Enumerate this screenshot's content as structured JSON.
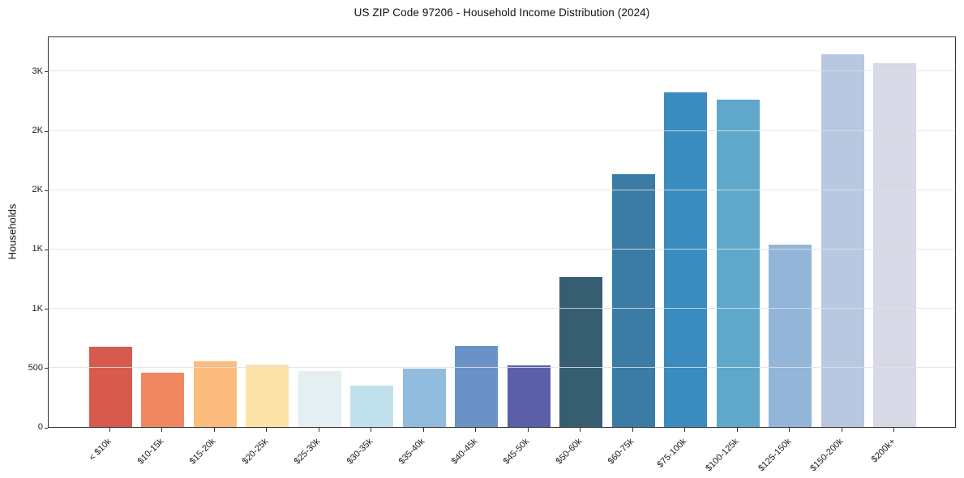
{
  "chart_data": {
    "type": "bar",
    "title": "US ZIP Code 97206 - Household Income Distribution (2024)",
    "xlabel": "",
    "ylabel": "Households",
    "categories": [
      "< $10k",
      "$10-15k",
      "$15-20k",
      "$20-25k",
      "$25-30k",
      "$30-35k",
      "$35-40k",
      "$40-45k",
      "$45-50k",
      "$50-60k",
      "$60-75k",
      "$75-100k",
      "$100-125k",
      "$125-150k",
      "$150-200k",
      "$200k+"
    ],
    "values": [
      675,
      455,
      555,
      525,
      470,
      350,
      495,
      680,
      520,
      1265,
      2130,
      2825,
      2760,
      1535,
      3145,
      3070
    ],
    "bar_colors": [
      "#D85A4E",
      "#F08760",
      "#FBBC7E",
      "#FCE4A8",
      "#E3EFF1",
      "#C1E0ED",
      "#92BCDE",
      "#6A92C6",
      "#5A5FA8",
      "#365E70",
      "#3A7CA5",
      "#3A8CBE",
      "#5FA8CC",
      "#93B5D8",
      "#B8C8E0",
      "#D7D9E6"
    ],
    "ylim": [
      0,
      3300
    ],
    "yticks": [
      {
        "value": 0,
        "label": "0"
      },
      {
        "value": 500,
        "label": "500"
      },
      {
        "value": 1000,
        "label": "1K"
      },
      {
        "value": 1500,
        "label": "1K"
      },
      {
        "value": 2000,
        "label": "2K"
      },
      {
        "value": 2500,
        "label": "2K"
      },
      {
        "value": 3000,
        "label": "3K"
      }
    ],
    "grid": "horizontal",
    "legend": false,
    "colors": {
      "background": "#ffffff",
      "axis": "#333333",
      "gridline": "#e0e1e5",
      "text": "#1c1c1c"
    }
  }
}
